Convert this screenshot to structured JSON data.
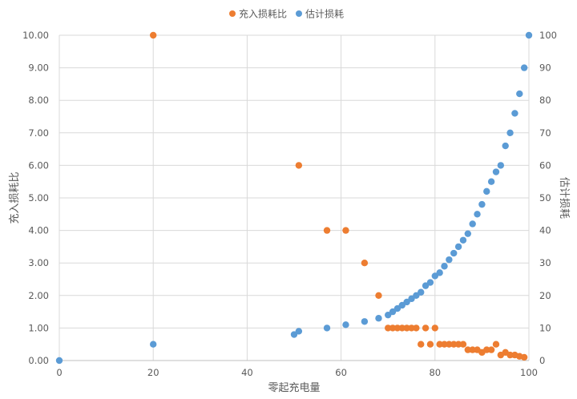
{
  "chart_data": {
    "type": "scatter",
    "xlabel": "零起充电量",
    "ylabel_left": "充入损耗比",
    "ylabel_right": "估计损耗",
    "xlim": [
      0,
      100
    ],
    "ylim_left": [
      0,
      10
    ],
    "ylim_right": [
      0,
      100
    ],
    "x_ticks": [
      "0",
      "20",
      "40",
      "60",
      "80",
      "100"
    ],
    "y_left_ticks": [
      "0.00",
      "1.00",
      "2.00",
      "3.00",
      "4.00",
      "5.00",
      "6.00",
      "7.00",
      "8.00",
      "9.00",
      "10.00"
    ],
    "y_right_ticks": [
      "0",
      "10",
      "20",
      "30",
      "40",
      "50",
      "60",
      "70",
      "80",
      "90",
      "100"
    ],
    "grid": true,
    "legend_position": "top-center",
    "series": [
      {
        "name": "充入损耗比",
        "axis": "left",
        "color": "#ED7D31",
        "points": [
          [
            20,
            10.0
          ],
          [
            51,
            6.0
          ],
          [
            57,
            4.0
          ],
          [
            61,
            4.0
          ],
          [
            65,
            3.0
          ],
          [
            68,
            2.0
          ],
          [
            70,
            1.0
          ],
          [
            71,
            1.0
          ],
          [
            72,
            1.0
          ],
          [
            73,
            1.0
          ],
          [
            74,
            1.0
          ],
          [
            75,
            1.0
          ],
          [
            76,
            1.0
          ],
          [
            77,
            0.5
          ],
          [
            78,
            1.0
          ],
          [
            79,
            0.5
          ],
          [
            80,
            1.0
          ],
          [
            81,
            0.5
          ],
          [
            82,
            0.5
          ],
          [
            83,
            0.5
          ],
          [
            84,
            0.5
          ],
          [
            85,
            0.5
          ],
          [
            86,
            0.5
          ],
          [
            87,
            0.33
          ],
          [
            88,
            0.33
          ],
          [
            89,
            0.33
          ],
          [
            90,
            0.25
          ],
          [
            91,
            0.33
          ],
          [
            92,
            0.33
          ],
          [
            93,
            0.5
          ],
          [
            94,
            0.17
          ],
          [
            95,
            0.25
          ],
          [
            96,
            0.17
          ],
          [
            97,
            0.17
          ],
          [
            98,
            0.13
          ],
          [
            99,
            0.1
          ]
        ]
      },
      {
        "name": "估计损耗",
        "axis": "right",
        "color": "#5B9BD5",
        "points": [
          [
            0,
            0
          ],
          [
            20,
            5
          ],
          [
            50,
            8
          ],
          [
            51,
            9
          ],
          [
            57,
            10
          ],
          [
            61,
            11
          ],
          [
            65,
            12
          ],
          [
            68,
            13
          ],
          [
            70,
            14
          ],
          [
            71,
            15
          ],
          [
            72,
            16
          ],
          [
            73,
            17
          ],
          [
            74,
            18
          ],
          [
            75,
            19
          ],
          [
            76,
            20
          ],
          [
            77,
            21
          ],
          [
            78,
            23
          ],
          [
            79,
            24
          ],
          [
            80,
            26
          ],
          [
            81,
            27
          ],
          [
            82,
            29
          ],
          [
            83,
            31
          ],
          [
            84,
            33
          ],
          [
            85,
            35
          ],
          [
            86,
            37
          ],
          [
            87,
            39
          ],
          [
            88,
            42
          ],
          [
            89,
            45
          ],
          [
            90,
            48
          ],
          [
            91,
            52
          ],
          [
            92,
            55
          ],
          [
            93,
            58
          ],
          [
            94,
            60
          ],
          [
            95,
            66
          ],
          [
            96,
            70
          ],
          [
            97,
            76
          ],
          [
            98,
            82
          ],
          [
            99,
            90
          ],
          [
            100,
            100
          ]
        ]
      }
    ]
  }
}
